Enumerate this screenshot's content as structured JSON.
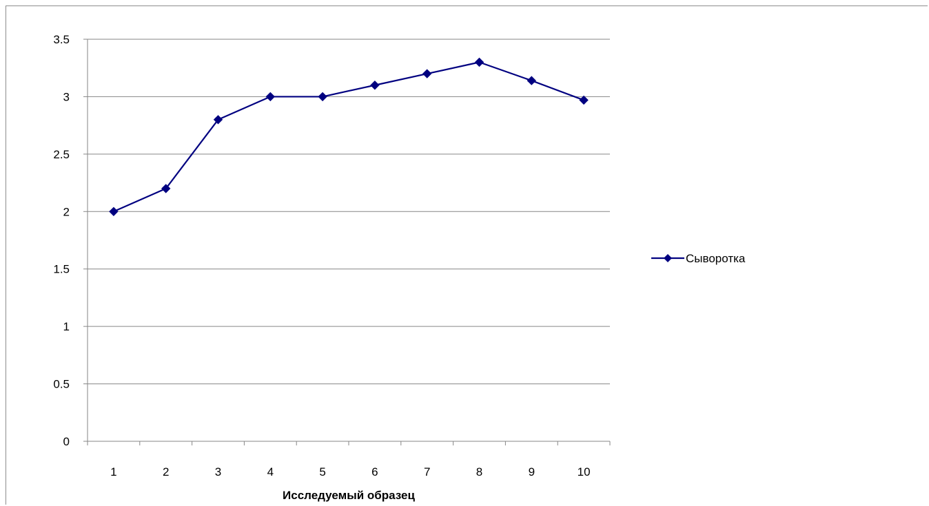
{
  "chart_data": {
    "type": "line",
    "title": "",
    "xlabel": "Исследуемый образец",
    "ylabel": "",
    "categories": [
      "1",
      "2",
      "3",
      "4",
      "5",
      "6",
      "7",
      "8",
      "9",
      "10"
    ],
    "series": [
      {
        "name": "Сыворотка",
        "values": [
          2.0,
          2.2,
          2.8,
          3.0,
          3.0,
          3.1,
          3.2,
          3.3,
          3.14,
          2.97
        ],
        "color": "#000080",
        "marker": "diamond"
      }
    ],
    "ylim": [
      0,
      3.5
    ],
    "yticks": [
      "0",
      "0.5",
      "1",
      "1.5",
      "2",
      "2.5",
      "3",
      "3.5"
    ],
    "grid": "horizontal",
    "legend_position": "right"
  }
}
